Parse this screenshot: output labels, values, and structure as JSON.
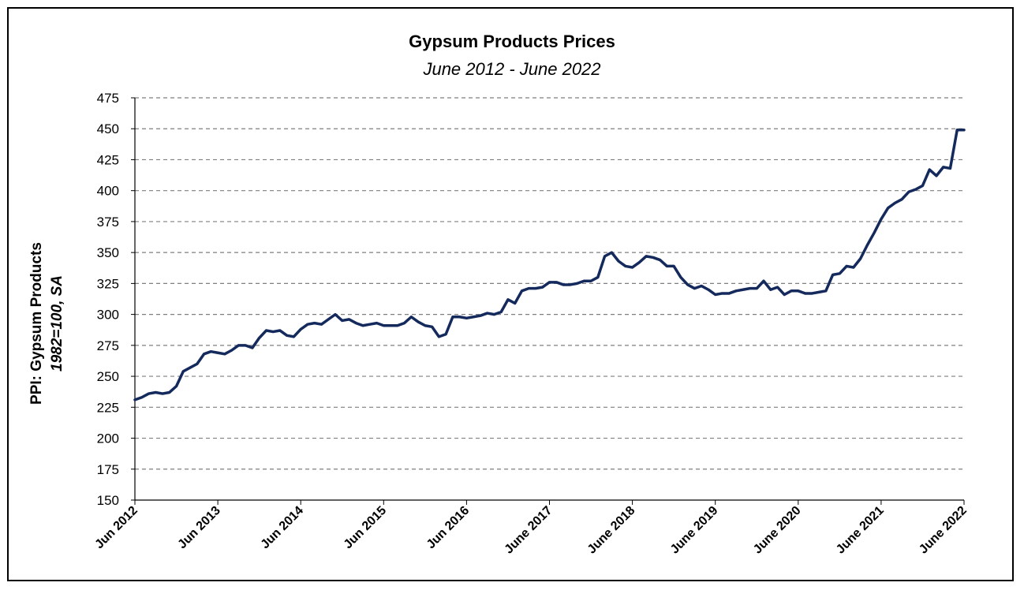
{
  "chart_data": {
    "type": "line",
    "title": "Gypsum Products Prices",
    "subtitle": "June 2012 - June 2022",
    "ylabel": "PPI: Gypsum Products",
    "ylabel_sub": "1982=100, SA",
    "xlabel": "",
    "ylim": [
      150,
      475
    ],
    "y_ticks": [
      150,
      175,
      200,
      225,
      250,
      275,
      300,
      325,
      350,
      375,
      400,
      425,
      450,
      475
    ],
    "x_tick_labels": [
      "Jun 2012",
      "Jun 2013",
      "Jun 2014",
      "Jun 2015",
      "Jun 2016",
      "June 2017",
      "June 2018",
      "June 2019",
      "June 2020",
      "June 2021",
      "June 2022"
    ],
    "grid": "horizontal-dashed",
    "legend": "none",
    "series": [
      {
        "color": "#14295c",
        "values": [
          231,
          233,
          236,
          237,
          236,
          237,
          242,
          254,
          257,
          260,
          268,
          270,
          269,
          268,
          271,
          275,
          275,
          273,
          281,
          287,
          286,
          287,
          283,
          282,
          288,
          292,
          293,
          292,
          296,
          300,
          295,
          296,
          293,
          291,
          292,
          293,
          291,
          291,
          291,
          293,
          298,
          294,
          291,
          290,
          282,
          284,
          298,
          298,
          297,
          298,
          299,
          301,
          300,
          302,
          312,
          309,
          319,
          321,
          321,
          322,
          326,
          326,
          324,
          324,
          325,
          327,
          327,
          330,
          347,
          350,
          343,
          339,
          338,
          342,
          347,
          346,
          344,
          339,
          339,
          330,
          324,
          321,
          323,
          320,
          316,
          317,
          317,
          319,
          320,
          321,
          321,
          327,
          320,
          322,
          316,
          319,
          319,
          317,
          317,
          318,
          319,
          332,
          333,
          339,
          338,
          345,
          356,
          366,
          377,
          386,
          390,
          393,
          399,
          401,
          404,
          417,
          412,
          419,
          418,
          449,
          449
        ]
      }
    ]
  }
}
